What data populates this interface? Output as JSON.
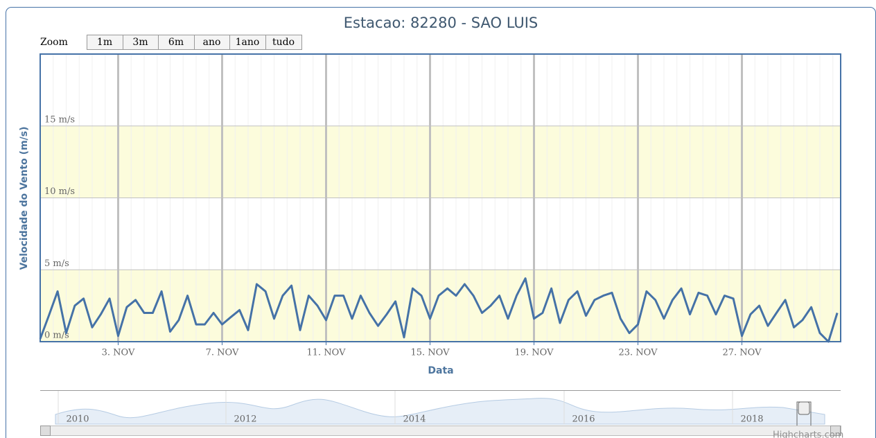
{
  "chart_data": {
    "type": "line",
    "title": "Estacao: 82280 - SAO LUIS",
    "y_label": "Velocidade do Vento (m/s)",
    "x_label": "Data",
    "zoom": {
      "label": "Zoom",
      "buttons": [
        "1m",
        "3m",
        "6m",
        "ano",
        "1ano",
        "tudo"
      ]
    },
    "x": [
      0,
      0.33,
      0.67,
      1,
      1.33,
      1.67,
      2,
      2.33,
      2.67,
      3,
      3.33,
      3.67,
      4,
      4.33,
      4.67,
      5,
      5.33,
      5.67,
      6,
      6.33,
      6.67,
      7,
      7.33,
      7.67,
      8,
      8.33,
      8.67,
      9,
      9.33,
      9.67,
      10,
      10.33,
      10.67,
      11,
      11.33,
      11.67,
      12,
      12.33,
      12.67,
      13,
      13.33,
      13.67,
      14,
      14.33,
      14.67,
      15,
      15.33,
      15.67,
      16,
      16.33,
      16.67,
      17,
      17.33,
      17.67,
      18,
      18.33,
      18.67,
      19,
      19.33,
      19.67,
      20,
      20.33,
      20.67,
      21,
      21.33,
      21.67,
      22,
      22.33,
      22.67,
      23,
      23.33,
      23.67,
      24,
      24.33,
      24.67,
      25,
      25.33,
      25.67,
      26,
      26.33,
      26.67,
      27,
      27.33,
      27.67,
      28,
      28.33,
      28.67,
      29,
      29.33,
      29.67,
      30,
      30.33,
      30.67
    ],
    "series": [
      {
        "color": "#4572a7",
        "values": [
          0.2,
          1.8,
          3.5,
          0.6,
          2.5,
          3.0,
          1.0,
          1.9,
          3.0,
          0.4,
          2.4,
          2.9,
          2.0,
          2.0,
          3.5,
          0.7,
          1.5,
          3.2,
          1.2,
          1.2,
          2.0,
          1.2,
          1.7,
          2.2,
          0.8,
          4.0,
          3.5,
          1.6,
          3.2,
          3.9,
          0.8,
          3.2,
          2.5,
          1.5,
          3.2,
          3.2,
          1.6,
          3.2,
          2.0,
          1.1,
          1.9,
          2.8,
          0.3,
          3.7,
          3.2,
          1.6,
          3.2,
          3.7,
          3.2,
          4.0,
          3.2,
          2.0,
          2.5,
          3.2,
          1.6,
          3.2,
          4.4,
          1.6,
          2.0,
          3.7,
          1.3,
          2.9,
          3.5,
          1.8,
          2.9,
          3.2,
          3.4,
          1.6,
          0.6,
          1.2,
          3.5,
          2.9,
          1.6,
          2.9,
          3.7,
          1.9,
          3.4,
          3.2,
          1.9,
          3.2,
          3.0,
          0.4,
          1.9,
          2.5,
          1.1,
          2.0,
          2.9,
          1.0,
          1.5,
          2.4,
          0.6,
          0.0,
          2.0
        ]
      }
    ],
    "xlim": [
      0,
      30.8
    ],
    "xticks": [
      {
        "value": 3,
        "label": "3. NOV"
      },
      {
        "value": 7,
        "label": "7. NOV"
      },
      {
        "value": 11,
        "label": "11. NOV"
      },
      {
        "value": 15,
        "label": "15. NOV"
      },
      {
        "value": 19,
        "label": "19. NOV"
      },
      {
        "value": 23,
        "label": "23. NOV"
      },
      {
        "value": 27,
        "label": "27. NOV"
      }
    ],
    "ylim": [
      0,
      20
    ],
    "yticks": [
      {
        "value": 0,
        "label": "0 m/s"
      },
      {
        "value": 5,
        "label": "5 m/s"
      },
      {
        "value": 10,
        "label": "10 m/s"
      },
      {
        "value": 15,
        "label": "15 m/s"
      }
    ],
    "plot_bands": [
      {
        "from": 0,
        "to": 5
      },
      {
        "from": 10,
        "to": 15
      }
    ],
    "band_color": "#fcfcdc",
    "grid": true,
    "navigator_labels": [
      "2010",
      "2012",
      "2014",
      "2016",
      "2018"
    ],
    "credit": "Highcharts.com"
  }
}
